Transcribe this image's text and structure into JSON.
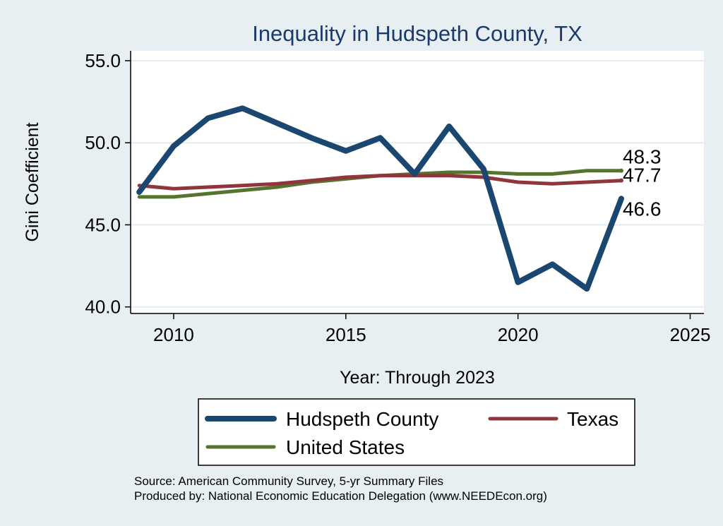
{
  "chart_data": {
    "type": "line",
    "title": "Inequality in Hudspeth County, TX",
    "xlabel": "Year: Through 2023",
    "ylabel": "Gini Coefficient",
    "xlim": [
      2008.75,
      2025.4
    ],
    "ylim": [
      39.6,
      55.6
    ],
    "xticks": [
      2010,
      2015,
      2020,
      2025
    ],
    "xtick_labels": [
      "2010",
      "2015",
      "2020",
      "2025"
    ],
    "yticks": [
      40,
      45,
      50,
      55
    ],
    "ytick_labels": [
      "40.0",
      "45.0",
      "50.0",
      "55.0"
    ],
    "grid": true,
    "x": [
      2009,
      2010,
      2011,
      2012,
      2013,
      2014,
      2015,
      2016,
      2017,
      2018,
      2019,
      2020,
      2021,
      2022,
      2023
    ],
    "series": [
      {
        "name": "Hudspeth County",
        "color": "#1a476f",
        "values": [
          47.0,
          49.8,
          51.5,
          52.1,
          51.2,
          50.3,
          49.5,
          50.3,
          48.1,
          51.0,
          48.4,
          41.5,
          42.6,
          41.1,
          46.6
        ],
        "end_label": "46.6"
      },
      {
        "name": "Texas",
        "color": "#90353b",
        "values": [
          47.4,
          47.2,
          47.3,
          47.4,
          47.5,
          47.7,
          47.9,
          48.0,
          48.0,
          48.0,
          47.9,
          47.6,
          47.5,
          47.6,
          47.7
        ],
        "end_label": "47.7"
      },
      {
        "name": "United States",
        "color": "#55752f",
        "values": [
          46.7,
          46.7,
          46.9,
          47.1,
          47.3,
          47.6,
          47.8,
          48.0,
          48.1,
          48.2,
          48.2,
          48.1,
          48.1,
          48.3,
          48.3
        ],
        "end_label": "48.3"
      }
    ],
    "legend": [
      "Hudspeth County",
      "Texas",
      "United States"
    ],
    "legend_position": "bottom"
  },
  "notes": {
    "source": "Source: American Community Survey, 5-yr Summary Files",
    "produced_by": "Produced by: National Economic Education Delegation (www.NEEDEcon.org)"
  }
}
